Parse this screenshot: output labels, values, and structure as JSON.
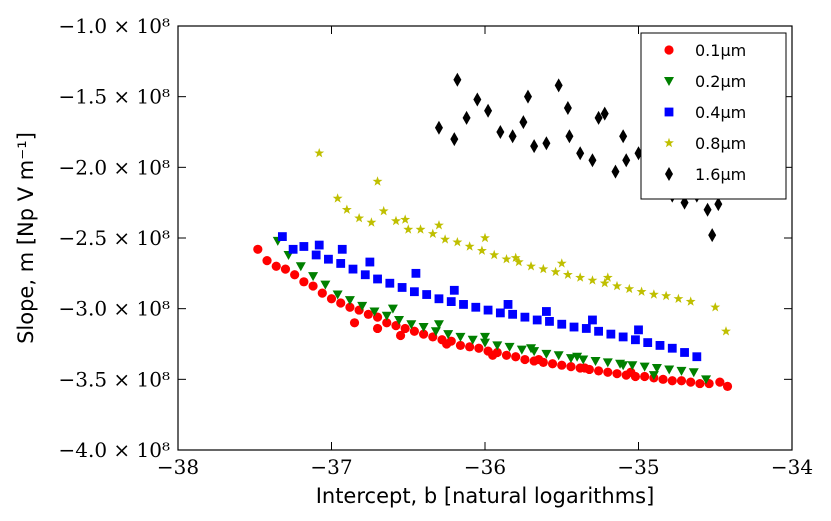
{
  "chart_data": {
    "type": "scatter",
    "title": "",
    "xlabel": "Intercept, b [natural logarithms]",
    "ylabel": "Slope, m [Np V m⁻¹]",
    "xlim": [
      -38,
      -34
    ],
    "ylim": [
      -400000000,
      -100000000
    ],
    "x_ticks": [
      -38,
      -37,
      -36,
      -35,
      -34
    ],
    "x_tick_labels": [
      "−38",
      "−37",
      "−36",
      "−35",
      "−34"
    ],
    "y_ticks": [
      -400000000,
      -350000000,
      -300000000,
      -250000000,
      -200000000,
      -150000000,
      -100000000
    ],
    "y_tick_labels": [
      "−4.0 × 10⁸",
      "−3.5 × 10⁸",
      "−3.0 × 10⁸",
      "−2.5 × 10⁸",
      "−2.0 × 10⁸",
      "−1.5 × 10⁸",
      "−1.0 × 10⁸"
    ],
    "grid": false,
    "legend_position": "top-right",
    "series": [
      {
        "name": "0.1μm",
        "color": "#ff0000",
        "marker": "circle",
        "x": [
          -37.48,
          -37.42,
          -37.36,
          -37.3,
          -37.24,
          -37.18,
          -37.12,
          -37.06,
          -37.0,
          -36.94,
          -36.88,
          -36.82,
          -36.76,
          -36.7,
          -36.64,
          -36.58,
          -36.52,
          -36.46,
          -36.4,
          -36.34,
          -36.28,
          -36.22,
          -36.16,
          -36.1,
          -36.04,
          -35.98,
          -35.92,
          -35.86,
          -35.8,
          -35.74,
          -35.68,
          -35.62,
          -35.56,
          -35.5,
          -35.44,
          -35.38,
          -35.32,
          -35.26,
          -35.2,
          -35.14,
          -35.08,
          -35.02,
          -34.96,
          -34.9,
          -34.84,
          -34.78,
          -34.72,
          -34.66,
          -34.6,
          -34.54,
          -34.47,
          -34.42,
          -36.85,
          -36.7,
          -36.55,
          -36.25,
          -35.95,
          -35.65,
          -35.35,
          -35.05
        ],
        "y": [
          -258000000,
          -266000000,
          -270000000,
          -272000000,
          -276000000,
          -281000000,
          -284000000,
          -289000000,
          -293000000,
          -296000000,
          -299000000,
          -301000000,
          -304000000,
          -306000000,
          -310000000,
          -312000000,
          -314000000,
          -316000000,
          -318000000,
          -320000000,
          -322000000,
          -323000000,
          -326000000,
          -327000000,
          -328000000,
          -330000000,
          -331000000,
          -333000000,
          -334000000,
          -336000000,
          -337000000,
          -338000000,
          -339000000,
          -340000000,
          -341000000,
          -342000000,
          -343000000,
          -344000000,
          -345000000,
          -346000000,
          -347000000,
          -348000000,
          -348000000,
          -349000000,
          -350000000,
          -351000000,
          -351000000,
          -352000000,
          -353000000,
          -353000000,
          -352000000,
          -355000000,
          -310000000,
          -314000000,
          -319000000,
          -325000000,
          -333000000,
          -336000000,
          -342000000,
          -345000000
        ]
      },
      {
        "name": "0.2μm",
        "color": "#008000",
        "marker": "triangle-down",
        "x": [
          -37.35,
          -37.28,
          -37.2,
          -37.12,
          -37.04,
          -36.96,
          -36.88,
          -36.8,
          -36.72,
          -36.64,
          -36.56,
          -36.48,
          -36.4,
          -36.32,
          -36.24,
          -36.16,
          -36.08,
          -36.0,
          -35.92,
          -35.84,
          -35.76,
          -35.68,
          -35.6,
          -35.52,
          -35.44,
          -35.36,
          -35.28,
          -35.2,
          -35.12,
          -35.04,
          -34.96,
          -34.88,
          -34.8,
          -34.72,
          -34.64,
          -34.56,
          -36.6,
          -36.3,
          -36.0,
          -35.7,
          -35.4,
          -35.1,
          -34.9
        ],
        "y": [
          -252000000,
          -262000000,
          -270000000,
          -277000000,
          -283000000,
          -290000000,
          -294000000,
          -298000000,
          -302000000,
          -305000000,
          -308000000,
          -311000000,
          -313000000,
          -316000000,
          -318000000,
          -320000000,
          -322000000,
          -324000000,
          -326000000,
          -327000000,
          -329000000,
          -330000000,
          -332000000,
          -333000000,
          -335000000,
          -336000000,
          -337000000,
          -338000000,
          -339000000,
          -340000000,
          -341000000,
          -342000000,
          -343000000,
          -344000000,
          -345000000,
          -350000000,
          -300000000,
          -311000000,
          -320000000,
          -328000000,
          -334000000,
          -340000000,
          -347000000
        ]
      },
      {
        "name": "0.4μm",
        "color": "#0000ff",
        "marker": "square",
        "x": [
          -37.32,
          -37.25,
          -37.18,
          -37.1,
          -37.02,
          -36.94,
          -36.86,
          -36.78,
          -36.7,
          -36.62,
          -36.54,
          -36.46,
          -36.38,
          -36.3,
          -36.22,
          -36.14,
          -36.06,
          -35.98,
          -35.9,
          -35.82,
          -35.74,
          -35.66,
          -35.58,
          -35.5,
          -35.42,
          -35.34,
          -35.26,
          -35.18,
          -35.1,
          -35.02,
          -34.94,
          -34.86,
          -34.78,
          -34.7,
          -34.62,
          -37.08,
          -36.93,
          -36.75,
          -36.45,
          -36.2,
          -35.85,
          -35.6,
          -35.3,
          -35.0
        ],
        "y": [
          -249000000,
          -258000000,
          -256000000,
          -262000000,
          -265000000,
          -268000000,
          -272000000,
          -276000000,
          -279000000,
          -282000000,
          -285000000,
          -288000000,
          -290000000,
          -293000000,
          -295000000,
          -297000000,
          -299000000,
          -301000000,
          -303000000,
          -304000000,
          -306000000,
          -308000000,
          -309000000,
          -311000000,
          -313000000,
          -314000000,
          -316000000,
          -318000000,
          -320000000,
          -322000000,
          -324000000,
          -326000000,
          -328000000,
          -331000000,
          -334000000,
          -255000000,
          -258000000,
          -267000000,
          -275000000,
          -287000000,
          -297000000,
          -302000000,
          -308000000,
          -315000000
        ]
      },
      {
        "name": "0.8μm",
        "color": "#bfbf00",
        "marker": "star",
        "x": [
          -37.08,
          -36.96,
          -36.9,
          -36.82,
          -36.74,
          -36.66,
          -36.58,
          -36.5,
          -36.42,
          -36.34,
          -36.26,
          -36.18,
          -36.1,
          -36.02,
          -35.94,
          -35.86,
          -35.78,
          -35.7,
          -35.62,
          -35.54,
          -35.46,
          -35.38,
          -35.3,
          -35.22,
          -35.14,
          -35.06,
          -34.98,
          -34.9,
          -34.82,
          -34.74,
          -34.66,
          -34.5,
          -34.43,
          -36.7,
          -36.52,
          -36.3,
          -36.0,
          -35.8,
          -35.5,
          -35.2
        ],
        "y": [
          -190000000,
          -222000000,
          -230000000,
          -236000000,
          -239000000,
          -231000000,
          -238000000,
          -244000000,
          -244000000,
          -247000000,
          -251000000,
          -253000000,
          -256000000,
          -259000000,
          -262000000,
          -265000000,
          -267000000,
          -270000000,
          -272000000,
          -274000000,
          -276000000,
          -278000000,
          -280000000,
          -282000000,
          -284000000,
          -286000000,
          -288000000,
          -290000000,
          -291000000,
          -293000000,
          -295000000,
          -299000000,
          -316000000,
          -210000000,
          -237000000,
          -241000000,
          -250000000,
          -264000000,
          -268000000,
          -278000000
        ]
      },
      {
        "name": "1.6μm",
        "color": "#000000",
        "marker": "diamond",
        "x": [
          -36.3,
          -36.2,
          -36.12,
          -36.05,
          -35.98,
          -35.9,
          -35.82,
          -35.75,
          -35.68,
          -35.6,
          -35.52,
          -35.45,
          -35.38,
          -35.3,
          -35.22,
          -35.15,
          -35.08,
          -35.0,
          -34.92,
          -34.85,
          -34.78,
          -34.7,
          -34.62,
          -34.55,
          -34.48,
          -36.18,
          -35.72,
          -35.46,
          -35.26,
          -35.1,
          -34.95,
          -34.66,
          -34.52
        ],
        "y": [
          -172000000,
          -180000000,
          -165000000,
          -152000000,
          -160000000,
          -175000000,
          -178000000,
          -168000000,
          -185000000,
          -183000000,
          -142000000,
          -178000000,
          -190000000,
          -195000000,
          -162000000,
          -203000000,
          -195000000,
          -190000000,
          -210000000,
          -213000000,
          -220000000,
          -225000000,
          -220000000,
          -230000000,
          -226000000,
          -138000000,
          -150000000,
          -158000000,
          -165000000,
          -178000000,
          -192000000,
          -205000000,
          -248000000
        ]
      }
    ]
  }
}
